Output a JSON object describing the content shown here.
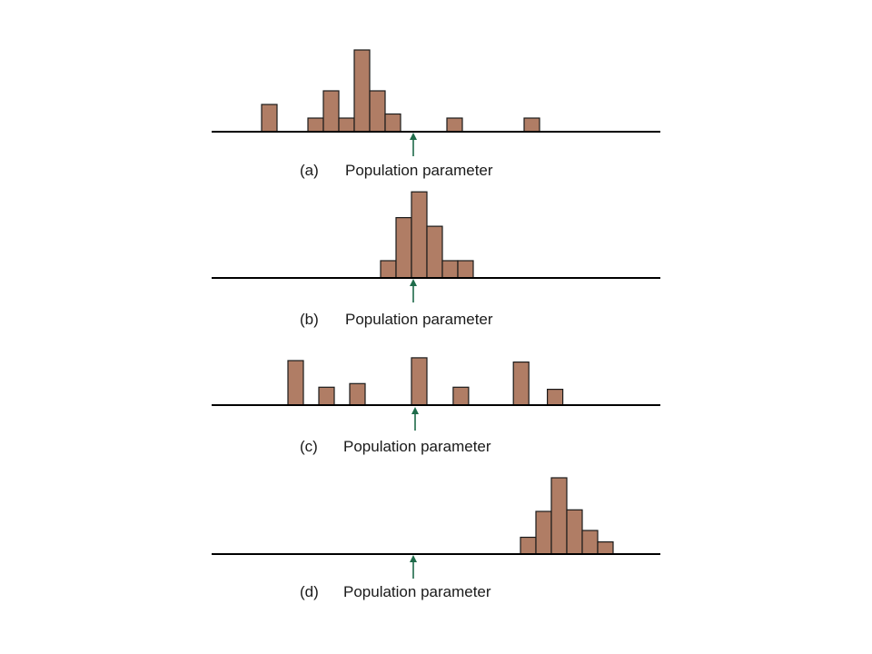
{
  "colors": {
    "bar_fill": "#b07d65",
    "bar_stroke": "#1a1a1a",
    "baseline": "#000000",
    "arrow": "#1f6b4a",
    "text": "#1a1a1a"
  },
  "panels": [
    {
      "id": "a",
      "tag": "(a)",
      "caption": "Population parameter",
      "bars": [
        {
          "slot": 0,
          "count": 2
        },
        {
          "slot": 3,
          "count": 1
        },
        {
          "slot": 4,
          "count": 3
        },
        {
          "slot": 5,
          "count": 1
        },
        {
          "slot": 6,
          "count": 6
        },
        {
          "slot": 7,
          "count": 3
        },
        {
          "slot": 8,
          "count": 1.3
        },
        {
          "slot": 12,
          "count": 1
        },
        {
          "slot": 17,
          "count": 1
        }
      ]
    },
    {
      "id": "b",
      "tag": "(b)",
      "caption": "Population parameter",
      "bars": [
        {
          "slot": 0,
          "count": 1.2
        },
        {
          "slot": 1,
          "count": 4.2
        },
        {
          "slot": 2,
          "count": 6
        },
        {
          "slot": 3,
          "count": 3.6
        },
        {
          "slot": 4,
          "count": 1.2
        },
        {
          "slot": 5,
          "count": 1.2
        }
      ]
    },
    {
      "id": "c",
      "tag": "(c)",
      "caption": "Population parameter",
      "bars": [
        {
          "slot": 0,
          "count": 3.1
        },
        {
          "slot": 2,
          "count": 1.25
        },
        {
          "slot": 4,
          "count": 1.5
        },
        {
          "slot": 8,
          "count": 3.3
        },
        {
          "slot": 10.7,
          "count": 1.25
        },
        {
          "slot": 14.6,
          "count": 3.0
        },
        {
          "slot": 16.8,
          "count": 1.1
        }
      ]
    },
    {
      "id": "d",
      "tag": "(d)",
      "caption": "Population parameter",
      "bars": [
        {
          "slot": 0,
          "count": 1.1
        },
        {
          "slot": 1,
          "count": 2.8
        },
        {
          "slot": 2,
          "count": 5.0
        },
        {
          "slot": 3,
          "count": 2.9
        },
        {
          "slot": 4,
          "count": 1.55
        },
        {
          "slot": 5,
          "count": 0.8
        }
      ]
    }
  ]
}
